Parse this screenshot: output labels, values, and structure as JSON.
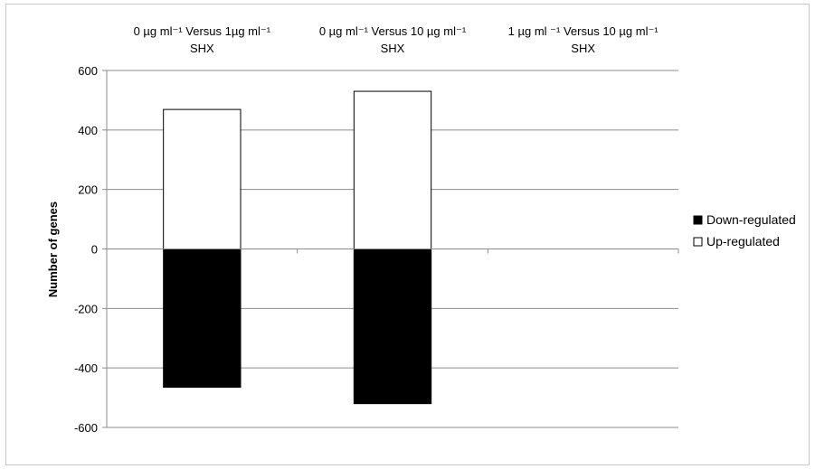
{
  "chart_data": {
    "type": "bar",
    "stacked": true,
    "categories": [
      [
        "0 µg ml⁻¹ Versus 1µg ml⁻¹",
        "SHX"
      ],
      [
        "0 µg ml⁻¹ Versus 10 µg ml⁻¹",
        "SHX"
      ],
      [
        "1 µg ml ⁻¹ Versus 10 µg ml⁻¹",
        "SHX"
      ]
    ],
    "series": [
      {
        "name": "Down-regulated",
        "values": [
          -465,
          -520,
          0
        ],
        "color": "#000000"
      },
      {
        "name": "Up-regulated",
        "values": [
          469,
          530,
          0
        ],
        "color": "#ffffff"
      }
    ],
    "ylabel": "Number of genes",
    "ylim": [
      -600,
      600
    ],
    "yticks": [
      600,
      400,
      200,
      0,
      -200,
      -400,
      -600
    ],
    "ytick_labels": [
      "600",
      "400",
      "200",
      "0",
      "-200",
      "-400",
      "-600"
    ],
    "grid": true,
    "category_labels_position": "top",
    "legend": "right"
  }
}
